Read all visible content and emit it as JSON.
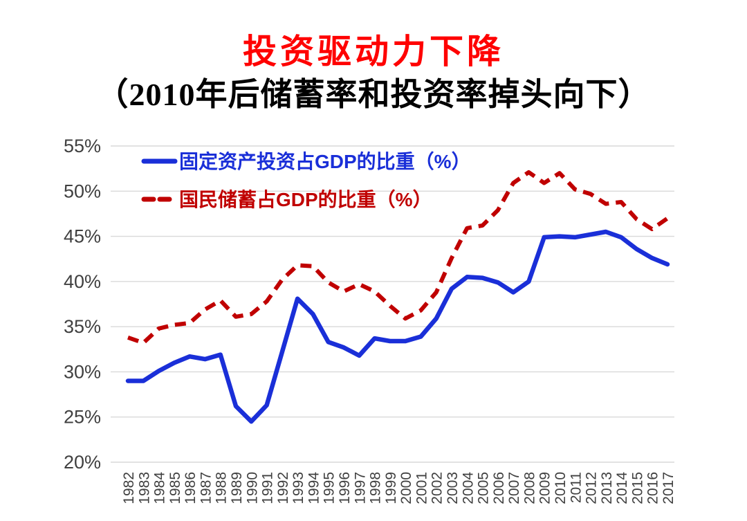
{
  "page": {
    "title": "投资驱动力下降",
    "subtitle": "（2010年后储蓄率和投资率掉头向下）"
  },
  "colors": {
    "title": "#ff0000",
    "subtitle": "#000000",
    "investment_blue": "#1a2fd8",
    "savings_red": "#c00000",
    "gridline": "#d9d9d9",
    "axis_label": "#404040",
    "background": "#ffffff"
  },
  "chart_data": {
    "type": "line",
    "title": "投资驱动力下降",
    "subtitle": "（2010年后储蓄率和投资率掉头向下）",
    "xlabel": "",
    "ylabel": "",
    "grid": "horizontal",
    "legend_position": "top-left-inside",
    "ylim": [
      20,
      55
    ],
    "yticks": [
      {
        "value": 20,
        "label": "20%"
      },
      {
        "value": 25,
        "label": "25%"
      },
      {
        "value": 30,
        "label": "30%"
      },
      {
        "value": 35,
        "label": "35%"
      },
      {
        "value": 40,
        "label": "40%"
      },
      {
        "value": 45,
        "label": "45%"
      },
      {
        "value": 50,
        "label": "50%"
      },
      {
        "value": 55,
        "label": "55%"
      }
    ],
    "x": [
      1982,
      1983,
      1984,
      1985,
      1986,
      1987,
      1988,
      1989,
      1990,
      1991,
      1992,
      1993,
      1994,
      1995,
      1996,
      1997,
      1998,
      1999,
      2000,
      2001,
      2002,
      2003,
      2004,
      2005,
      2006,
      2007,
      2008,
      2009,
      2010,
      2011,
      2012,
      2013,
      2014,
      2015,
      2016,
      2017
    ],
    "series": [
      {
        "id": "investment",
        "name": "固定资产投资占GDP的比重（%）",
        "color": "#1a2fd8",
        "style": "solid",
        "values": [
          29.0,
          29.0,
          30.1,
          31.0,
          31.7,
          31.4,
          31.9,
          26.2,
          24.5,
          26.3,
          32.2,
          38.1,
          36.4,
          33.3,
          32.7,
          31.8,
          33.7,
          33.4,
          33.4,
          33.9,
          35.9,
          39.2,
          40.5,
          40.4,
          39.9,
          38.8,
          40.0,
          44.9,
          45.0,
          44.9,
          45.2,
          45.5,
          44.9,
          43.6,
          42.6,
          41.9
        ]
      },
      {
        "id": "savings",
        "name": "国民储蓄占GDP的比重（%）",
        "color": "#c00000",
        "style": "dashed",
        "values": [
          33.8,
          33.2,
          34.8,
          35.2,
          35.4,
          36.9,
          37.9,
          36.1,
          36.4,
          37.8,
          40.2,
          41.8,
          41.7,
          39.9,
          38.9,
          39.7,
          38.9,
          37.3,
          35.9,
          36.8,
          38.8,
          42.6,
          45.9,
          46.2,
          47.9,
          50.9,
          52.1,
          50.9,
          52.0,
          50.2,
          49.7,
          48.6,
          48.8,
          46.9,
          45.8,
          47.0
        ]
      }
    ]
  }
}
